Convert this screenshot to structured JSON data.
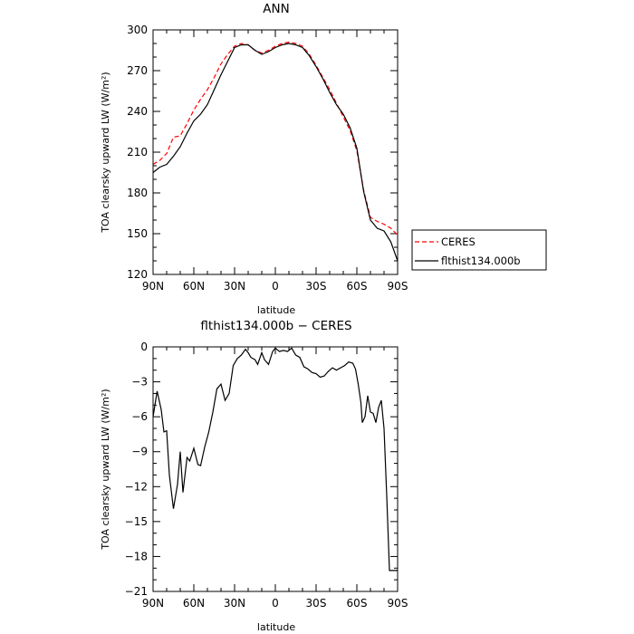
{
  "chart_data": [
    {
      "type": "line",
      "title": "ANN",
      "xlabel": "latitude",
      "ylabel": "TOA clearsky upward LW (W/m²)",
      "xlim": [
        90,
        -90
      ],
      "ylim": [
        120,
        300
      ],
      "xticks": [
        90,
        60,
        30,
        0,
        -30,
        -60,
        -90
      ],
      "xtick_labels": [
        "90N",
        "60N",
        "30N",
        "0",
        "30S",
        "60S",
        "90S"
      ],
      "yticks": [
        120,
        150,
        180,
        210,
        240,
        270,
        300
      ],
      "ytick_labels": [
        "120",
        "150",
        "180",
        "210",
        "240",
        "270",
        "300"
      ],
      "grid": false,
      "legend_position": "right",
      "series": [
        {
          "name": "CERES",
          "color": "#ff0000",
          "style": "dashed",
          "x": [
            90,
            85,
            80,
            75,
            70,
            65,
            60,
            55,
            50,
            45,
            40,
            35,
            30,
            25,
            20,
            15,
            10,
            5,
            0,
            -5,
            -10,
            -15,
            -20,
            -25,
            -30,
            -35,
            -40,
            -45,
            -50,
            -55,
            -60,
            -65,
            -70,
            -75,
            -80,
            -85,
            -90
          ],
          "values": [
            201,
            204,
            209,
            221,
            222,
            231,
            241,
            249,
            256,
            265,
            275,
            282,
            288,
            290,
            289,
            285,
            283,
            285,
            288,
            290,
            291,
            290,
            288,
            282,
            274,
            265,
            256,
            246,
            236,
            226,
            211,
            182,
            162,
            159,
            157,
            154,
            149
          ]
        },
        {
          "name": "flthist134.000b",
          "color": "#000000",
          "style": "solid",
          "x": [
            90,
            85,
            80,
            75,
            70,
            65,
            60,
            55,
            50,
            45,
            40,
            35,
            30,
            25,
            20,
            15,
            10,
            5,
            0,
            -5,
            -10,
            -15,
            -20,
            -25,
            -30,
            -35,
            -40,
            -45,
            -50,
            -55,
            -60,
            -65,
            -70,
            -75,
            -80,
            -85,
            -90
          ],
          "values": [
            195,
            199,
            201,
            207,
            214,
            224,
            233,
            238,
            245,
            256,
            267,
            277,
            287,
            289,
            289,
            285,
            282,
            284,
            287,
            289,
            290,
            289,
            287,
            281,
            273,
            264,
            254,
            245,
            238,
            228,
            213,
            181,
            160,
            154,
            152,
            144,
            130
          ]
        }
      ]
    },
    {
      "type": "line",
      "title": "flthist134.000b − CERES",
      "xlabel": "latitude",
      "ylabel": "TOA clearsky upward LW (W/m²)",
      "xlim": [
        90,
        -90
      ],
      "ylim": [
        -21,
        0
      ],
      "xticks": [
        90,
        60,
        30,
        0,
        -30,
        -60,
        -90
      ],
      "xtick_labels": [
        "90N",
        "60N",
        "30N",
        "0",
        "30S",
        "60S",
        "90S"
      ],
      "yticks": [
        -21,
        -18,
        -15,
        -12,
        -9,
        -6,
        -3,
        0
      ],
      "ytick_labels": [
        "−21",
        "−18",
        "−15",
        "−12",
        "−9",
        "−6",
        "−3",
        "0"
      ],
      "grid": false,
      "series": [
        {
          "color": "#000000",
          "style": "solid",
          "x": [
            90,
            87,
            84,
            82,
            80,
            78,
            75,
            72,
            70,
            68,
            65,
            63,
            60,
            57,
            55,
            52,
            49,
            46,
            43,
            40,
            37,
            34,
            31,
            28,
            25,
            22,
            20,
            18,
            15,
            13,
            10,
            8,
            5,
            2,
            0,
            -3,
            -6,
            -9,
            -12,
            -15,
            -18,
            -21,
            -24,
            -27,
            -30,
            -33,
            -36,
            -39,
            -42,
            -45,
            -48,
            -51,
            -54,
            -57,
            -59,
            -61,
            -63,
            -64,
            -66,
            -68,
            -70,
            -72,
            -74,
            -76,
            -78,
            -80,
            -82,
            -84,
            -86,
            -88,
            -90
          ],
          "values": [
            -6.0,
            -3.8,
            -5.4,
            -7.3,
            -7.2,
            -11.0,
            -13.9,
            -11.8,
            -9.0,
            -12.5,
            -9.5,
            -9.8,
            -8.7,
            -10.1,
            -10.2,
            -8.6,
            -7.3,
            -5.6,
            -3.6,
            -3.2,
            -4.6,
            -4.0,
            -1.6,
            -1.0,
            -0.7,
            -0.2,
            -0.5,
            -0.9,
            -1.1,
            -1.5,
            -0.5,
            -1.1,
            -1.5,
            -0.4,
            -0.1,
            -0.4,
            -0.3,
            -0.4,
            -0.1,
            -0.7,
            -0.9,
            -1.7,
            -1.9,
            -2.2,
            -2.3,
            -2.6,
            -2.5,
            -2.1,
            -1.8,
            -2.0,
            -1.8,
            -1.6,
            -1.3,
            -1.4,
            -1.9,
            -3.2,
            -4.8,
            -6.5,
            -6.0,
            -4.2,
            -5.6,
            -5.7,
            -6.5,
            -5.2,
            -4.6,
            -7.0,
            -12.8,
            -19.2,
            -19.2,
            -19.2,
            -19.2
          ]
        }
      ]
    }
  ]
}
